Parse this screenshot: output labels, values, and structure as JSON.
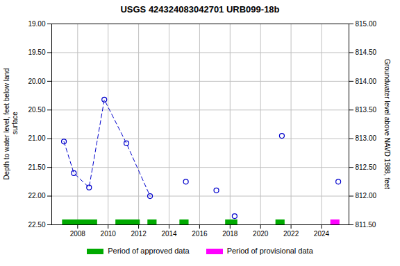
{
  "chart_data": {
    "type": "line",
    "title": "USGS 424324083042701 URB099-18b",
    "ylabel": "Depth to water level, feet below land\n surface",
    "y2label": "Groundwater level above NAVD 1988, feet",
    "x": [
      2007.1,
      2007.75,
      2008.75,
      2009.75,
      2011.2,
      2012.75,
      2015.1,
      2017.1,
      2018.3,
      2021.4,
      2025.1
    ],
    "series": [
      {
        "type": "line",
        "color": "#0000cc",
        "marker": "o",
        "line_style": "dashed",
        "values": [
          21.05,
          21.6,
          21.85,
          20.32,
          21.08,
          22.0,
          null,
          null,
          null,
          null,
          null
        ]
      },
      {
        "type": "scatter",
        "color": "#0000cc",
        "marker": "o",
        "values": [
          null,
          null,
          null,
          null,
          null,
          null,
          21.75,
          21.9,
          22.35,
          20.95,
          21.75
        ]
      }
    ],
    "periods": [
      {
        "name": "Period of approved data",
        "color": "#00aa00",
        "ranges": [
          [
            2007.0,
            2009.3
          ],
          [
            2010.5,
            2012.1
          ],
          [
            2012.6,
            2013.2
          ],
          [
            2014.7,
            2015.3
          ],
          [
            2017.7,
            2018.5
          ],
          [
            2021.0,
            2021.6
          ]
        ]
      },
      {
        "name": "Period of provisional data",
        "color": "#ff00ff",
        "ranges": [
          [
            2024.6,
            2025.2
          ]
        ]
      }
    ],
    "xlim": [
      2006.3,
      2025.8
    ],
    "xticks": [
      2008,
      2010,
      2012,
      2014,
      2016,
      2018,
      2020,
      2022,
      2024
    ],
    "ylim": [
      22.5,
      19.0
    ],
    "yticks": [
      {
        "value": 19.0,
        "label": "19.00"
      },
      {
        "value": 19.5,
        "label": "19.50"
      },
      {
        "value": 20.0,
        "label": "20.00"
      },
      {
        "value": 20.5,
        "label": "20.50"
      },
      {
        "value": 21.0,
        "label": "21.00"
      },
      {
        "value": 21.5,
        "label": "21.50"
      },
      {
        "value": 22.0,
        "label": "22.00"
      },
      {
        "value": 22.5,
        "label": "22.50"
      }
    ],
    "y2lim": [
      811.5,
      815.0
    ],
    "y2ticks": [
      {
        "value": 811.5,
        "label": "811.50"
      },
      {
        "value": 812.0,
        "label": "812.00"
      },
      {
        "value": 812.5,
        "label": "812.50"
      },
      {
        "value": 813.0,
        "label": "813.00"
      },
      {
        "value": 813.5,
        "label": "813.50"
      },
      {
        "value": 814.0,
        "label": "814.00"
      },
      {
        "value": 814.5,
        "label": "814.50"
      },
      {
        "value": 815.0,
        "label": "815.00"
      }
    ],
    "grid": true,
    "legend": "bottom"
  }
}
